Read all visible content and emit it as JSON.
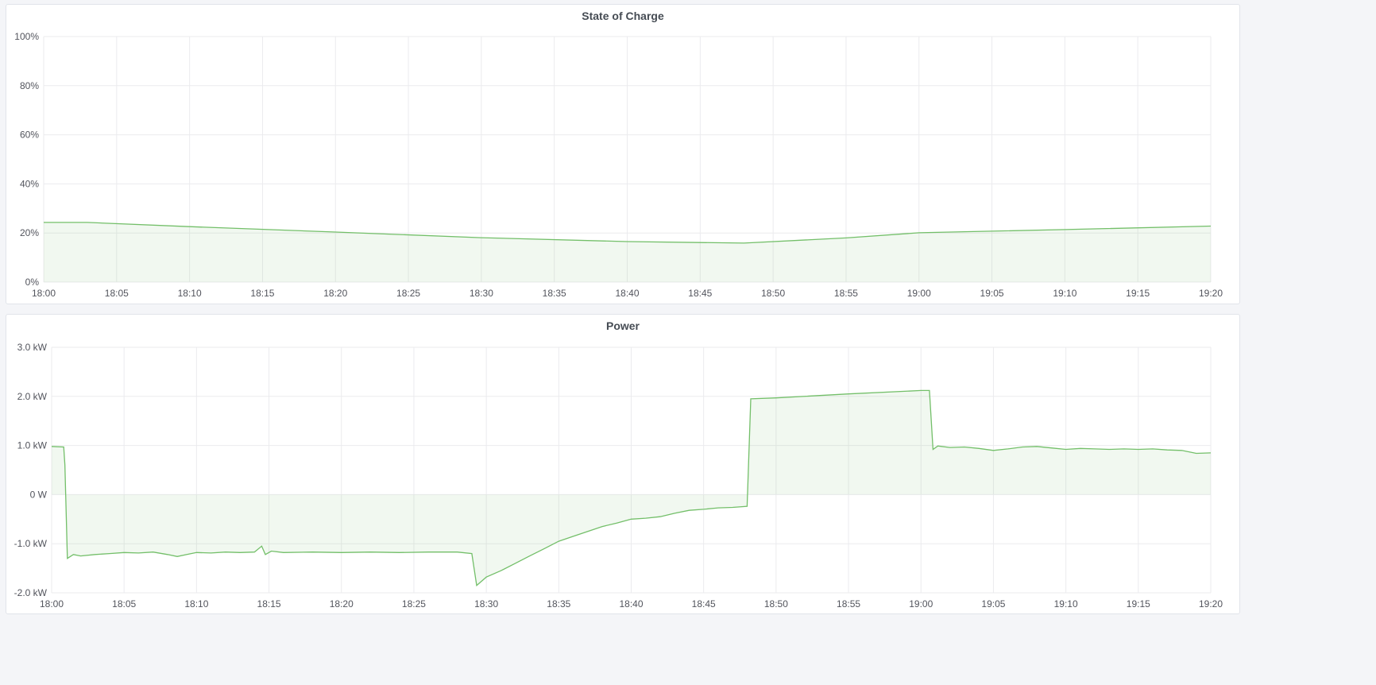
{
  "chart_data": [
    {
      "type": "area",
      "title": "State of Charge",
      "x_ticks": [
        "18:00",
        "18:05",
        "18:10",
        "18:15",
        "18:20",
        "18:25",
        "18:30",
        "18:35",
        "18:40",
        "18:45",
        "18:50",
        "18:55",
        "19:00",
        "19:05",
        "19:10",
        "19:15",
        "19:20"
      ],
      "y_ticks": [
        "0%",
        "20%",
        "40%",
        "60%",
        "80%",
        "100%"
      ],
      "ylim": [
        0,
        100
      ],
      "xlim": [
        "18:00",
        "19:20"
      ],
      "grid": true,
      "color": "#73bf69",
      "points": [
        [
          "18:00:00",
          24.3
        ],
        [
          "18:03:00",
          24.3
        ],
        [
          "18:10:00",
          22.6
        ],
        [
          "18:20:00",
          20.4
        ],
        [
          "18:30:00",
          18.1
        ],
        [
          "18:40:00",
          16.5
        ],
        [
          "18:48:00",
          15.9
        ],
        [
          "18:55:00",
          18.0
        ],
        [
          "19:00:00",
          20.1
        ],
        [
          "19:10:00",
          21.4
        ],
        [
          "19:20:00",
          22.8
        ]
      ]
    },
    {
      "type": "area",
      "title": "Power",
      "x_ticks": [
        "18:00",
        "18:05",
        "18:10",
        "18:15",
        "18:20",
        "18:25",
        "18:30",
        "18:35",
        "18:40",
        "18:45",
        "18:50",
        "18:55",
        "19:00",
        "19:05",
        "19:10",
        "19:15",
        "19:20"
      ],
      "y_ticks": [
        "-2.0 kW",
        "-1.0 kW",
        "0 W",
        "1.0 kW",
        "2.0 kW",
        "3.0 kW"
      ],
      "y_tick_values": [
        -2,
        -1,
        0,
        1,
        2,
        3
      ],
      "ylim": [
        -2,
        3
      ],
      "xlim": [
        "18:00",
        "19:20"
      ],
      "unit": "kW",
      "grid": true,
      "color": "#73bf69",
      "points": [
        [
          "18:00:00",
          0.98
        ],
        [
          "18:00:50",
          0.97
        ],
        [
          "18:00:55",
          0.6
        ],
        [
          "18:01:05",
          -1.3
        ],
        [
          "18:01:30",
          -1.22
        ],
        [
          "18:02:00",
          -1.25
        ],
        [
          "18:03:00",
          -1.22
        ],
        [
          "18:04:00",
          -1.2
        ],
        [
          "18:05:00",
          -1.18
        ],
        [
          "18:06:00",
          -1.19
        ],
        [
          "18:07:00",
          -1.17
        ],
        [
          "18:08:00",
          -1.22
        ],
        [
          "18:08:40",
          -1.26
        ],
        [
          "18:09:20",
          -1.22
        ],
        [
          "18:10:00",
          -1.18
        ],
        [
          "18:11:00",
          -1.19
        ],
        [
          "18:12:00",
          -1.17
        ],
        [
          "18:13:00",
          -1.18
        ],
        [
          "18:14:00",
          -1.17
        ],
        [
          "18:14:30",
          -1.05
        ],
        [
          "18:14:45",
          -1.22
        ],
        [
          "18:15:10",
          -1.15
        ],
        [
          "18:16:00",
          -1.18
        ],
        [
          "18:18:00",
          -1.17
        ],
        [
          "18:20:00",
          -1.18
        ],
        [
          "18:22:00",
          -1.17
        ],
        [
          "18:24:00",
          -1.18
        ],
        [
          "18:26:00",
          -1.17
        ],
        [
          "18:28:00",
          -1.17
        ],
        [
          "18:29:00",
          -1.2
        ],
        [
          "18:29:20",
          -1.85
        ],
        [
          "18:30:00",
          -1.68
        ],
        [
          "18:31:00",
          -1.55
        ],
        [
          "18:32:00",
          -1.4
        ],
        [
          "18:33:00",
          -1.25
        ],
        [
          "18:34:00",
          -1.1
        ],
        [
          "18:35:00",
          -0.95
        ],
        [
          "18:36:00",
          -0.85
        ],
        [
          "18:37:00",
          -0.75
        ],
        [
          "18:38:00",
          -0.65
        ],
        [
          "18:39:00",
          -0.58
        ],
        [
          "18:40:00",
          -0.5
        ],
        [
          "18:41:00",
          -0.48
        ],
        [
          "18:42:00",
          -0.45
        ],
        [
          "18:43:00",
          -0.38
        ],
        [
          "18:44:00",
          -0.32
        ],
        [
          "18:45:00",
          -0.3
        ],
        [
          "18:46:00",
          -0.27
        ],
        [
          "18:47:00",
          -0.26
        ],
        [
          "18:48:00",
          -0.24
        ],
        [
          "18:48:15",
          1.95
        ],
        [
          "18:50:00",
          1.97
        ],
        [
          "18:55:00",
          2.05
        ],
        [
          "19:00:00",
          2.12
        ],
        [
          "19:00:35",
          2.12
        ],
        [
          "19:00:50",
          0.92
        ],
        [
          "19:01:10",
          0.99
        ],
        [
          "19:02:00",
          0.96
        ],
        [
          "19:03:00",
          0.97
        ],
        [
          "19:04:00",
          0.94
        ],
        [
          "19:05:00",
          0.9
        ],
        [
          "19:06:00",
          0.93
        ],
        [
          "19:07:00",
          0.97
        ],
        [
          "19:08:00",
          0.98
        ],
        [
          "19:09:00",
          0.95
        ],
        [
          "19:10:00",
          0.92
        ],
        [
          "19:11:00",
          0.94
        ],
        [
          "19:12:00",
          0.93
        ],
        [
          "19:13:00",
          0.92
        ],
        [
          "19:14:00",
          0.93
        ],
        [
          "19:15:00",
          0.92
        ],
        [
          "19:16:00",
          0.93
        ],
        [
          "19:17:00",
          0.91
        ],
        [
          "19:18:00",
          0.9
        ],
        [
          "19:19:00",
          0.84
        ],
        [
          "19:20:00",
          0.85
        ]
      ]
    }
  ]
}
